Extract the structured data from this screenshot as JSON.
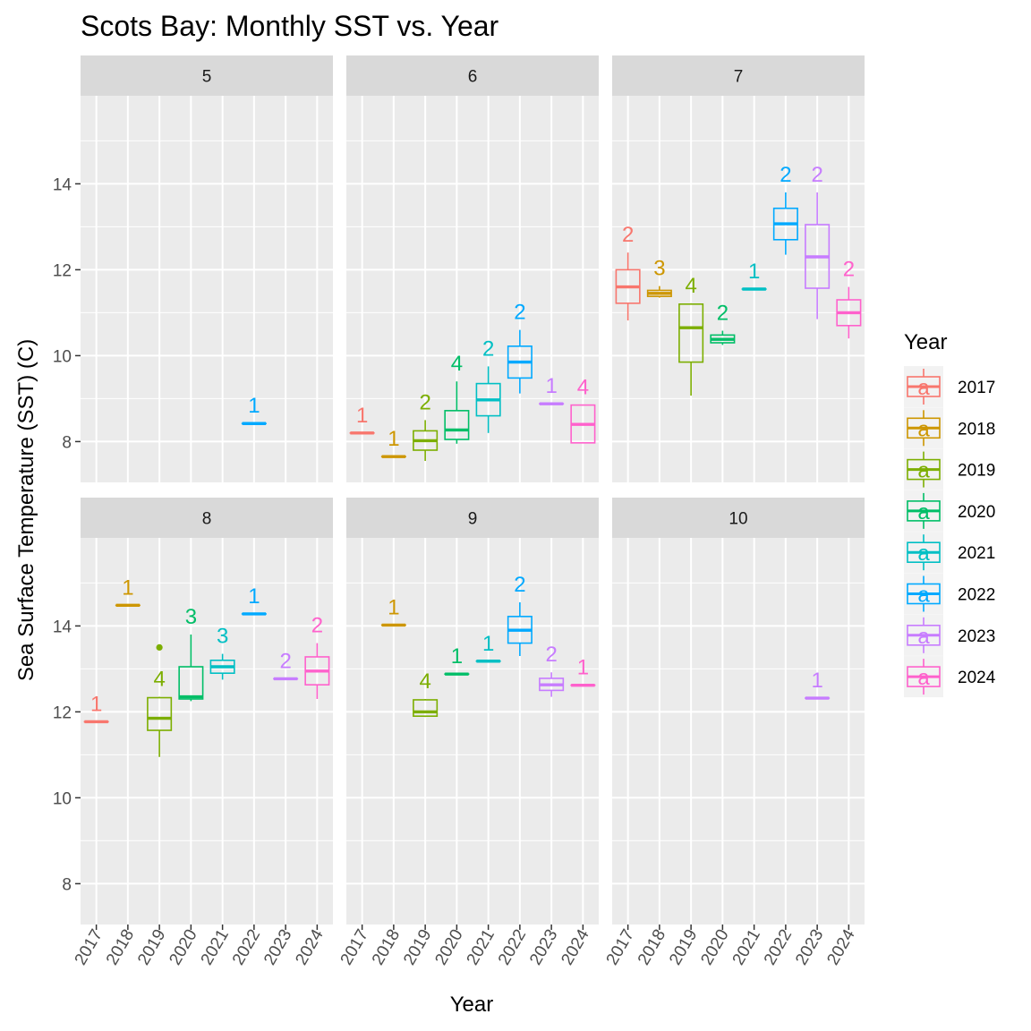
{
  "chart_data": {
    "type": "boxplot",
    "title": "Scots Bay: Monthly SST vs. Year",
    "xlabel": "Year",
    "ylabel": "Sea Surface Temperature (SST) (C)",
    "categories": [
      "2017",
      "2018",
      "2019",
      "2020",
      "2021",
      "2022",
      "2023",
      "2024"
    ],
    "ylim": [
      7.05,
      16.05
    ],
    "yticks": [
      8,
      10,
      12,
      14
    ],
    "grid": true,
    "legend": {
      "title": "Year",
      "position": "right",
      "key_glyph": "a",
      "entries": [
        "2017",
        "2018",
        "2019",
        "2020",
        "2021",
        "2022",
        "2023",
        "2024"
      ]
    },
    "colors": {
      "2017": "#F8766D",
      "2018": "#CD9600",
      "2019": "#7CAE00",
      "2020": "#00BE67",
      "2021": "#00BFC4",
      "2022": "#00A9FF",
      "2023": "#C77CFF",
      "2024": "#FF61CC"
    },
    "panels": [
      {
        "month": "5",
        "boxes": [
          {
            "year": "2022",
            "min": 8.42,
            "q1": 8.42,
            "median": 8.42,
            "q3": 8.42,
            "max": 8.42,
            "n": "1"
          }
        ]
      },
      {
        "month": "6",
        "boxes": [
          {
            "year": "2017",
            "min": 8.2,
            "q1": 8.2,
            "median": 8.2,
            "q3": 8.2,
            "max": 8.2,
            "n": "1"
          },
          {
            "year": "2018",
            "min": 7.65,
            "q1": 7.65,
            "median": 7.65,
            "q3": 7.65,
            "max": 7.65,
            "n": "1"
          },
          {
            "year": "2019",
            "min": 7.55,
            "q1": 7.8,
            "median": 8.02,
            "q3": 8.25,
            "max": 8.5,
            "n": "2"
          },
          {
            "year": "2020",
            "min": 7.95,
            "q1": 8.05,
            "median": 8.27,
            "q3": 8.72,
            "max": 9.4,
            "n": "4"
          },
          {
            "year": "2021",
            "min": 8.2,
            "q1": 8.6,
            "median": 8.97,
            "q3": 9.35,
            "max": 9.75,
            "n": "2"
          },
          {
            "year": "2022",
            "min": 9.12,
            "q1": 9.48,
            "median": 9.85,
            "q3": 10.22,
            "max": 10.6,
            "n": "2"
          },
          {
            "year": "2023",
            "min": 8.88,
            "q1": 8.88,
            "median": 8.88,
            "q3": 8.88,
            "max": 8.88,
            "n": "1"
          },
          {
            "year": "2024",
            "min": 7.97,
            "q1": 7.97,
            "median": 8.4,
            "q3": 8.85,
            "max": 8.85,
            "n": "4"
          }
        ]
      },
      {
        "month": "7",
        "boxes": [
          {
            "year": "2017",
            "min": 10.82,
            "q1": 11.22,
            "median": 11.6,
            "q3": 12.0,
            "max": 12.4,
            "n": "2"
          },
          {
            "year": "2018",
            "min": 11.35,
            "q1": 11.38,
            "median": 11.45,
            "q3": 11.52,
            "max": 11.62,
            "n": "3"
          },
          {
            "year": "2019",
            "min": 9.07,
            "q1": 9.85,
            "median": 10.65,
            "q3": 11.2,
            "max": 11.22,
            "n": "4"
          },
          {
            "year": "2020",
            "min": 10.25,
            "q1": 10.3,
            "median": 10.38,
            "q3": 10.48,
            "max": 10.58,
            "n": "2"
          },
          {
            "year": "2021",
            "min": 11.55,
            "q1": 11.55,
            "median": 11.55,
            "q3": 11.55,
            "max": 11.55,
            "n": "1"
          },
          {
            "year": "2022",
            "min": 12.35,
            "q1": 12.7,
            "median": 13.07,
            "q3": 13.43,
            "max": 13.8,
            "n": "2"
          },
          {
            "year": "2023",
            "min": 10.85,
            "q1": 11.57,
            "median": 12.3,
            "q3": 13.05,
            "max": 13.8,
            "n": "2"
          },
          {
            "year": "2024",
            "min": 10.4,
            "q1": 10.7,
            "median": 11.0,
            "q3": 11.3,
            "max": 11.6,
            "n": "2"
          }
        ]
      },
      {
        "month": "8",
        "boxes": [
          {
            "year": "2017",
            "min": 11.77,
            "q1": 11.77,
            "median": 11.77,
            "q3": 11.77,
            "max": 11.77,
            "n": "1"
          },
          {
            "year": "2018",
            "min": 14.48,
            "q1": 14.48,
            "median": 14.48,
            "q3": 14.48,
            "max": 14.48,
            "n": "1"
          },
          {
            "year": "2019",
            "min": 10.95,
            "q1": 11.57,
            "median": 11.85,
            "q3": 12.33,
            "max": 12.35,
            "n": "4",
            "outliers": [
              13.5
            ]
          },
          {
            "year": "2020",
            "min": 12.25,
            "q1": 12.3,
            "median": 12.35,
            "q3": 13.05,
            "max": 13.8,
            "n": "3"
          },
          {
            "year": "2021",
            "min": 12.75,
            "q1": 12.9,
            "median": 13.05,
            "q3": 13.2,
            "max": 13.35,
            "n": "3"
          },
          {
            "year": "2022",
            "min": 14.28,
            "q1": 14.28,
            "median": 14.28,
            "q3": 14.28,
            "max": 14.28,
            "n": "1"
          },
          {
            "year": "2023",
            "min": 12.77,
            "q1": 12.77,
            "median": 12.77,
            "q3": 12.77,
            "max": 12.77,
            "n": "2"
          },
          {
            "year": "2024",
            "min": 12.3,
            "q1": 12.63,
            "median": 12.95,
            "q3": 13.28,
            "max": 13.6,
            "n": "2"
          }
        ]
      },
      {
        "month": "9",
        "boxes": [
          {
            "year": "2018",
            "min": 14.02,
            "q1": 14.02,
            "median": 14.02,
            "q3": 14.02,
            "max": 14.02,
            "n": "1"
          },
          {
            "year": "2019",
            "min": 11.88,
            "q1": 11.9,
            "median": 12.0,
            "q3": 12.28,
            "max": 12.3,
            "n": "4"
          },
          {
            "year": "2020",
            "min": 12.88,
            "q1": 12.88,
            "median": 12.88,
            "q3": 12.88,
            "max": 12.88,
            "n": "1"
          },
          {
            "year": "2021",
            "min": 13.18,
            "q1": 13.18,
            "median": 13.18,
            "q3": 13.18,
            "max": 13.18,
            "n": "1"
          },
          {
            "year": "2022",
            "min": 13.3,
            "q1": 13.6,
            "median": 13.9,
            "q3": 14.22,
            "max": 14.55,
            "n": "2"
          },
          {
            "year": "2023",
            "min": 12.35,
            "q1": 12.5,
            "median": 12.63,
            "q3": 12.78,
            "max": 12.92,
            "n": "2"
          },
          {
            "year": "2024",
            "min": 12.62,
            "q1": 12.62,
            "median": 12.62,
            "q3": 12.62,
            "max": 12.62,
            "n": "1"
          }
        ]
      },
      {
        "month": "10",
        "boxes": [
          {
            "year": "2023",
            "min": 12.32,
            "q1": 12.32,
            "median": 12.32,
            "q3": 12.32,
            "max": 12.32,
            "n": "1"
          }
        ]
      }
    ]
  }
}
